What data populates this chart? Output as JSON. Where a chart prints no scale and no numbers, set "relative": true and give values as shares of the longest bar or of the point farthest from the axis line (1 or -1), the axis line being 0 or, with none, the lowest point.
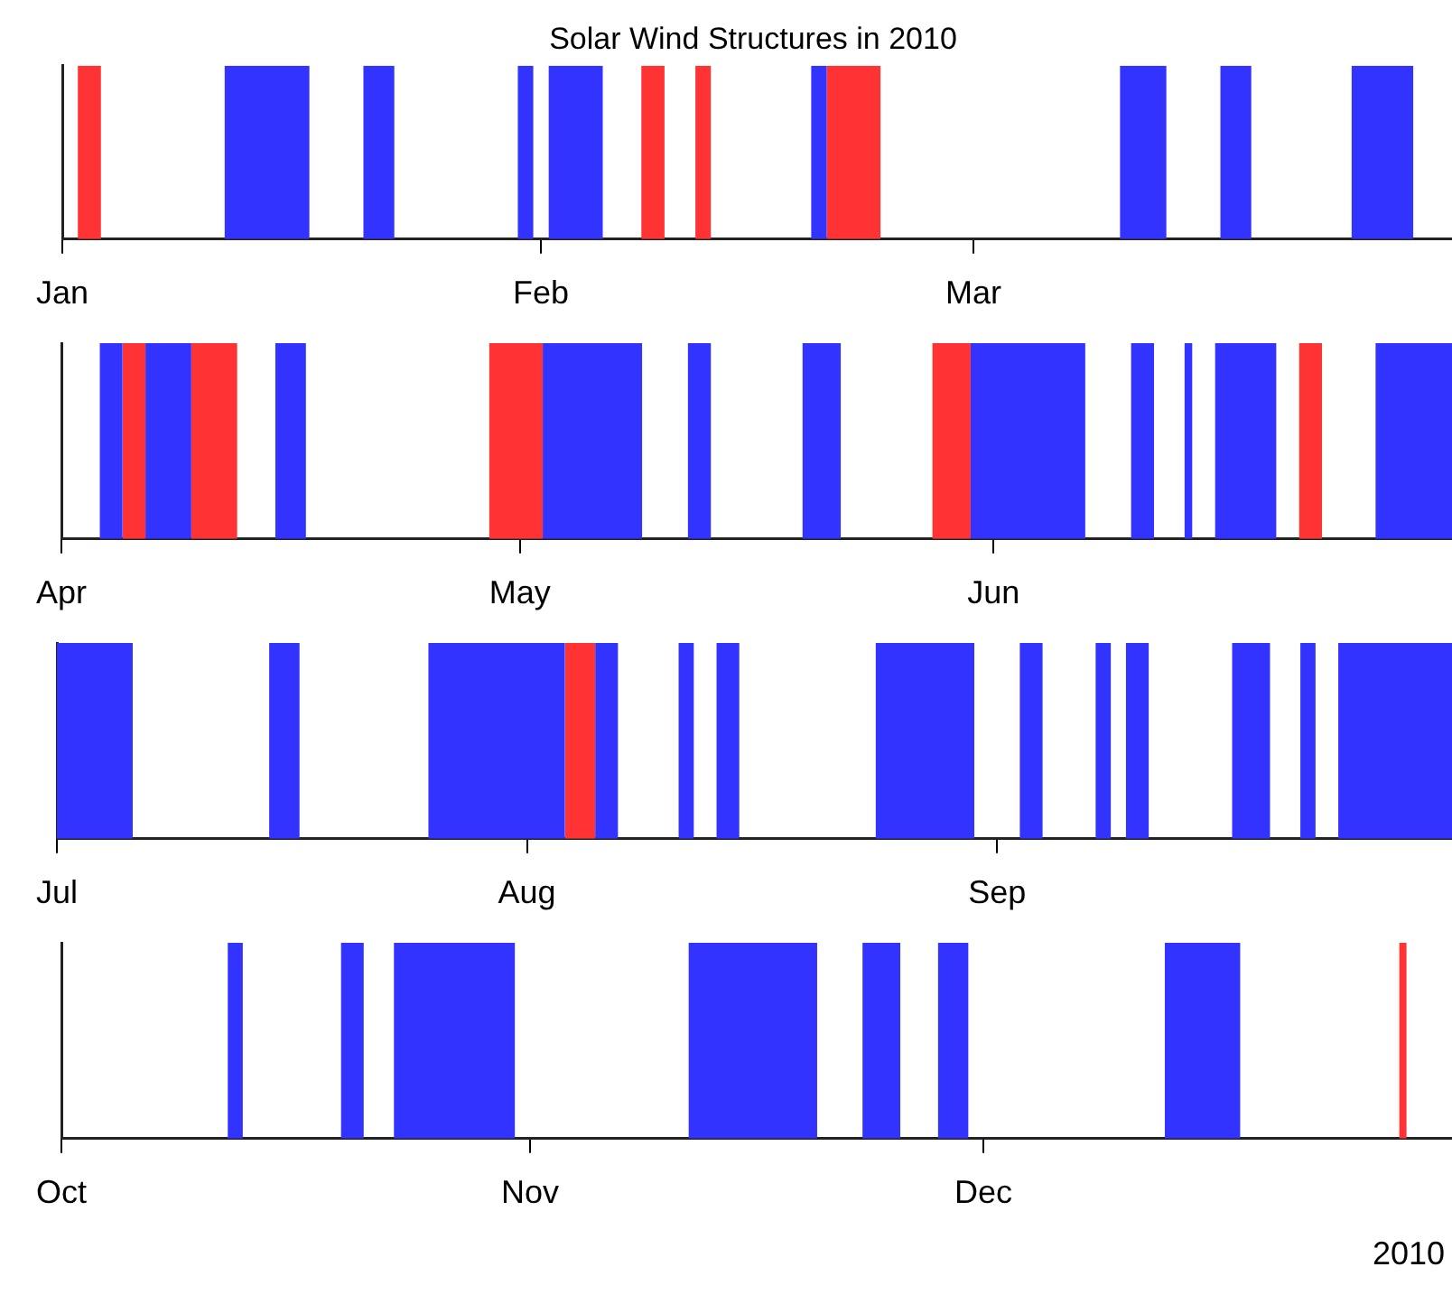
{
  "chart_data": [
    {
      "type": "area",
      "relative": true,
      "title": "Solar Wind Structures in 2010",
      "xlim": [
        "2010-01-01",
        "2010-04-01"
      ],
      "xticks": [
        {
          "value": "2010-01-01",
          "label": "Jan"
        },
        {
          "value": "2010-02-01",
          "label": "Feb"
        },
        {
          "value": "2010-03-01",
          "label": "Mar"
        }
      ],
      "legend": false,
      "series": [
        {
          "color": "#3333ff",
          "x": [
            "2010-01-11T12:00",
            "2010-01-11T12:00",
            "2010-01-17",
            "2010-01-17",
            "2010-01-20T12:00",
            "2010-01-20T12:00",
            "2010-01-22T12:00",
            "2010-01-22T12:00",
            "2010-01-30T12:00",
            "2010-01-30T12:00",
            "2010-01-31T12:00",
            "2010-01-31T12:00",
            "2010-02-01T12:00",
            "2010-02-01T12:00",
            "2010-02-05",
            "2010-02-05",
            "2010-02-18T12:00",
            "2010-02-18T12:00",
            "2010-02-19T12:00",
            "2010-02-19T12:00",
            "2010-03-10T12:00",
            "2010-03-10T12:00",
            "2010-03-13T12:00",
            "2010-03-13T12:00",
            "2010-03-17",
            "2010-03-17",
            "2010-03-19",
            "2010-03-19",
            "2010-03-25T12:00",
            "2010-03-25T12:00",
            "2010-03-29T12:00",
            "2010-03-29T12:00"
          ],
          "values": [
            0,
            1,
            1,
            0,
            0,
            1,
            1,
            0,
            0,
            1,
            1,
            0,
            0,
            1,
            1,
            0,
            0,
            1,
            1,
            0,
            0,
            1,
            1,
            0,
            0,
            1,
            1,
            0,
            0,
            1,
            1,
            0
          ]
        },
        {
          "color": "#ff3333",
          "x": [
            "2010-01-02",
            "2010-01-02",
            "2010-01-03T12:00",
            "2010-01-03T12:00",
            "2010-02-07T12:00",
            "2010-02-07T12:00",
            "2010-02-09",
            "2010-02-09",
            "2010-02-11",
            "2010-02-11",
            "2010-02-12",
            "2010-02-12",
            "2010-02-19T12:00",
            "2010-02-19T12:00",
            "2010-02-23",
            "2010-02-23"
          ],
          "values": [
            0,
            1,
            1,
            0,
            0,
            1,
            1,
            0,
            0,
            1,
            1,
            0,
            0,
            1,
            1,
            0
          ]
        }
      ]
    },
    {
      "type": "area",
      "relative": true,
      "xlim": [
        "2010-04-01",
        "2010-07-01"
      ],
      "xticks": [
        {
          "value": "2010-04-01",
          "label": "Apr"
        },
        {
          "value": "2010-05-01",
          "label": "May"
        },
        {
          "value": "2010-06-01",
          "label": "Jun"
        }
      ],
      "legend": false,
      "series": [
        {
          "color": "#3333ff",
          "x": [
            "2010-04-03T12:00",
            "2010-04-03T12:00",
            "2010-04-05",
            "2010-04-05",
            "2010-04-06T12:00",
            "2010-04-06T12:00",
            "2010-04-09T12:00",
            "2010-04-09T12:00",
            "2010-04-15",
            "2010-04-15",
            "2010-04-17",
            "2010-04-17",
            "2010-05-02T12:00",
            "2010-05-02T12:00",
            "2010-05-09",
            "2010-05-09",
            "2010-05-12",
            "2010-05-12",
            "2010-05-13T12:00",
            "2010-05-13T12:00",
            "2010-05-19T12:00",
            "2010-05-19T12:00",
            "2010-05-22",
            "2010-05-22",
            "2010-05-30T12:00",
            "2010-05-30T12:00",
            "2010-06-07",
            "2010-06-07",
            "2010-06-10",
            "2010-06-10",
            "2010-06-11T12:00",
            "2010-06-11T12:00",
            "2010-06-13T12:00",
            "2010-06-13T12:00",
            "2010-06-14",
            "2010-06-14",
            "2010-06-15T12:00",
            "2010-06-15T12:00",
            "2010-06-19T12:00",
            "2010-06-19T12:00",
            "2010-06-26",
            "2010-06-26",
            "2010-07-01",
            "2010-07-01"
          ],
          "values": [
            0,
            1,
            1,
            0,
            0,
            1,
            1,
            0,
            0,
            1,
            1,
            0,
            0,
            1,
            1,
            0,
            0,
            1,
            1,
            0,
            0,
            1,
            1,
            0,
            0,
            1,
            1,
            0,
            0,
            1,
            1,
            0,
            0,
            1,
            1,
            0,
            0,
            1,
            1,
            0,
            0,
            1,
            1,
            0
          ]
        },
        {
          "color": "#ff3333",
          "x": [
            "2010-04-05",
            "2010-04-05",
            "2010-04-06T12:00",
            "2010-04-06T12:00",
            "2010-04-09T12:00",
            "2010-04-09T12:00",
            "2010-04-12T12:00",
            "2010-04-12T12:00",
            "2010-04-29",
            "2010-04-29",
            "2010-05-02T12:00",
            "2010-05-02T12:00",
            "2010-05-28",
            "2010-05-28",
            "2010-05-30T12:00",
            "2010-05-30T12:00",
            "2010-06-21",
            "2010-06-21",
            "2010-06-22T12:00",
            "2010-06-22T12:00"
          ],
          "values": [
            0,
            1,
            1,
            0,
            0,
            1,
            1,
            0,
            0,
            1,
            1,
            0,
            0,
            1,
            1,
            0,
            0,
            1,
            1,
            0
          ]
        }
      ]
    },
    {
      "type": "area",
      "relative": true,
      "xlim": [
        "2010-07-01",
        "2010-10-01"
      ],
      "xticks": [
        {
          "value": "2010-07-01",
          "label": "Jul"
        },
        {
          "value": "2010-08-01",
          "label": "Aug"
        },
        {
          "value": "2010-09-01",
          "label": "Sep"
        }
      ],
      "legend": false,
      "series": [
        {
          "color": "#3333ff",
          "x": [
            "2010-07-01",
            "2010-07-01",
            "2010-07-06",
            "2010-07-06",
            "2010-07-15",
            "2010-07-15",
            "2010-07-17",
            "2010-07-17",
            "2010-07-25T12:00",
            "2010-07-25T12:00",
            "2010-08-03T12:00",
            "2010-08-03T12:00",
            "2010-08-05T12:00",
            "2010-08-05T12:00",
            "2010-08-07",
            "2010-08-07",
            "2010-08-11",
            "2010-08-11",
            "2010-08-12",
            "2010-08-12",
            "2010-08-13T12:00",
            "2010-08-13T12:00",
            "2010-08-15",
            "2010-08-15",
            "2010-08-24",
            "2010-08-24",
            "2010-08-30T12:00",
            "2010-08-30T12:00",
            "2010-09-02T12:00",
            "2010-09-02T12:00",
            "2010-09-04",
            "2010-09-04",
            "2010-09-07T12:00",
            "2010-09-07T12:00",
            "2010-09-08T12:00",
            "2010-09-08T12:00",
            "2010-09-09T12:00",
            "2010-09-09T12:00",
            "2010-09-11",
            "2010-09-11",
            "2010-09-16T12:00",
            "2010-09-16T12:00",
            "2010-09-19",
            "2010-09-19",
            "2010-09-21",
            "2010-09-21",
            "2010-09-22",
            "2010-09-22",
            "2010-09-23T12:00",
            "2010-09-23T12:00",
            "2010-10-01",
            "2010-10-01"
          ],
          "values": [
            0,
            1,
            1,
            0,
            0,
            1,
            1,
            0,
            0,
            1,
            1,
            0,
            0,
            1,
            1,
            0,
            0,
            1,
            1,
            0,
            0,
            1,
            1,
            0,
            0,
            1,
            1,
            0,
            0,
            1,
            1,
            0,
            0,
            1,
            1,
            0,
            0,
            1,
            1,
            0,
            0,
            1,
            1,
            0,
            0,
            1,
            1,
            0,
            0,
            1,
            1,
            0
          ]
        },
        {
          "color": "#ff3333",
          "x": [
            "2010-08-03T12:00",
            "2010-08-03T12:00",
            "2010-08-05T12:00",
            "2010-08-05T12:00"
          ],
          "values": [
            0,
            1,
            1,
            0
          ]
        }
      ]
    },
    {
      "type": "area",
      "relative": true,
      "xlim": [
        "2010-10-01",
        "2011-01-01"
      ],
      "xticks": [
        {
          "value": "2010-10-01",
          "label": "Oct"
        },
        {
          "value": "2010-11-01",
          "label": "Nov"
        },
        {
          "value": "2010-12-01",
          "label": "Dec"
        }
      ],
      "legend": false,
      "annotations": [
        "2010"
      ],
      "series": [
        {
          "color": "#3333ff",
          "x": [
            "2010-10-12",
            "2010-10-12",
            "2010-10-13",
            "2010-10-13",
            "2010-10-19T12:00",
            "2010-10-19T12:00",
            "2010-10-21",
            "2010-10-21",
            "2010-10-23",
            "2010-10-23",
            "2010-10-31",
            "2010-10-31",
            "2010-11-11T12:00",
            "2010-11-11T12:00",
            "2010-11-20",
            "2010-11-20",
            "2010-11-23",
            "2010-11-23",
            "2010-11-25T12:00",
            "2010-11-25T12:00",
            "2010-11-28",
            "2010-11-28",
            "2010-11-30",
            "2010-11-30",
            "2010-12-13",
            "2010-12-13",
            "2010-12-18",
            "2010-12-18"
          ],
          "values": [
            0,
            1,
            1,
            0,
            0,
            1,
            1,
            0,
            0,
            1,
            1,
            0,
            0,
            1,
            1,
            0,
            0,
            1,
            1,
            0,
            0,
            1,
            1,
            0,
            0,
            1,
            1,
            0
          ]
        },
        {
          "color": "#ff3333",
          "x": [
            "2010-12-28T12:00",
            "2010-12-28T12:00",
            "2010-12-29",
            "2010-12-29"
          ],
          "values": [
            0,
            1,
            1,
            0
          ]
        }
      ]
    }
  ]
}
